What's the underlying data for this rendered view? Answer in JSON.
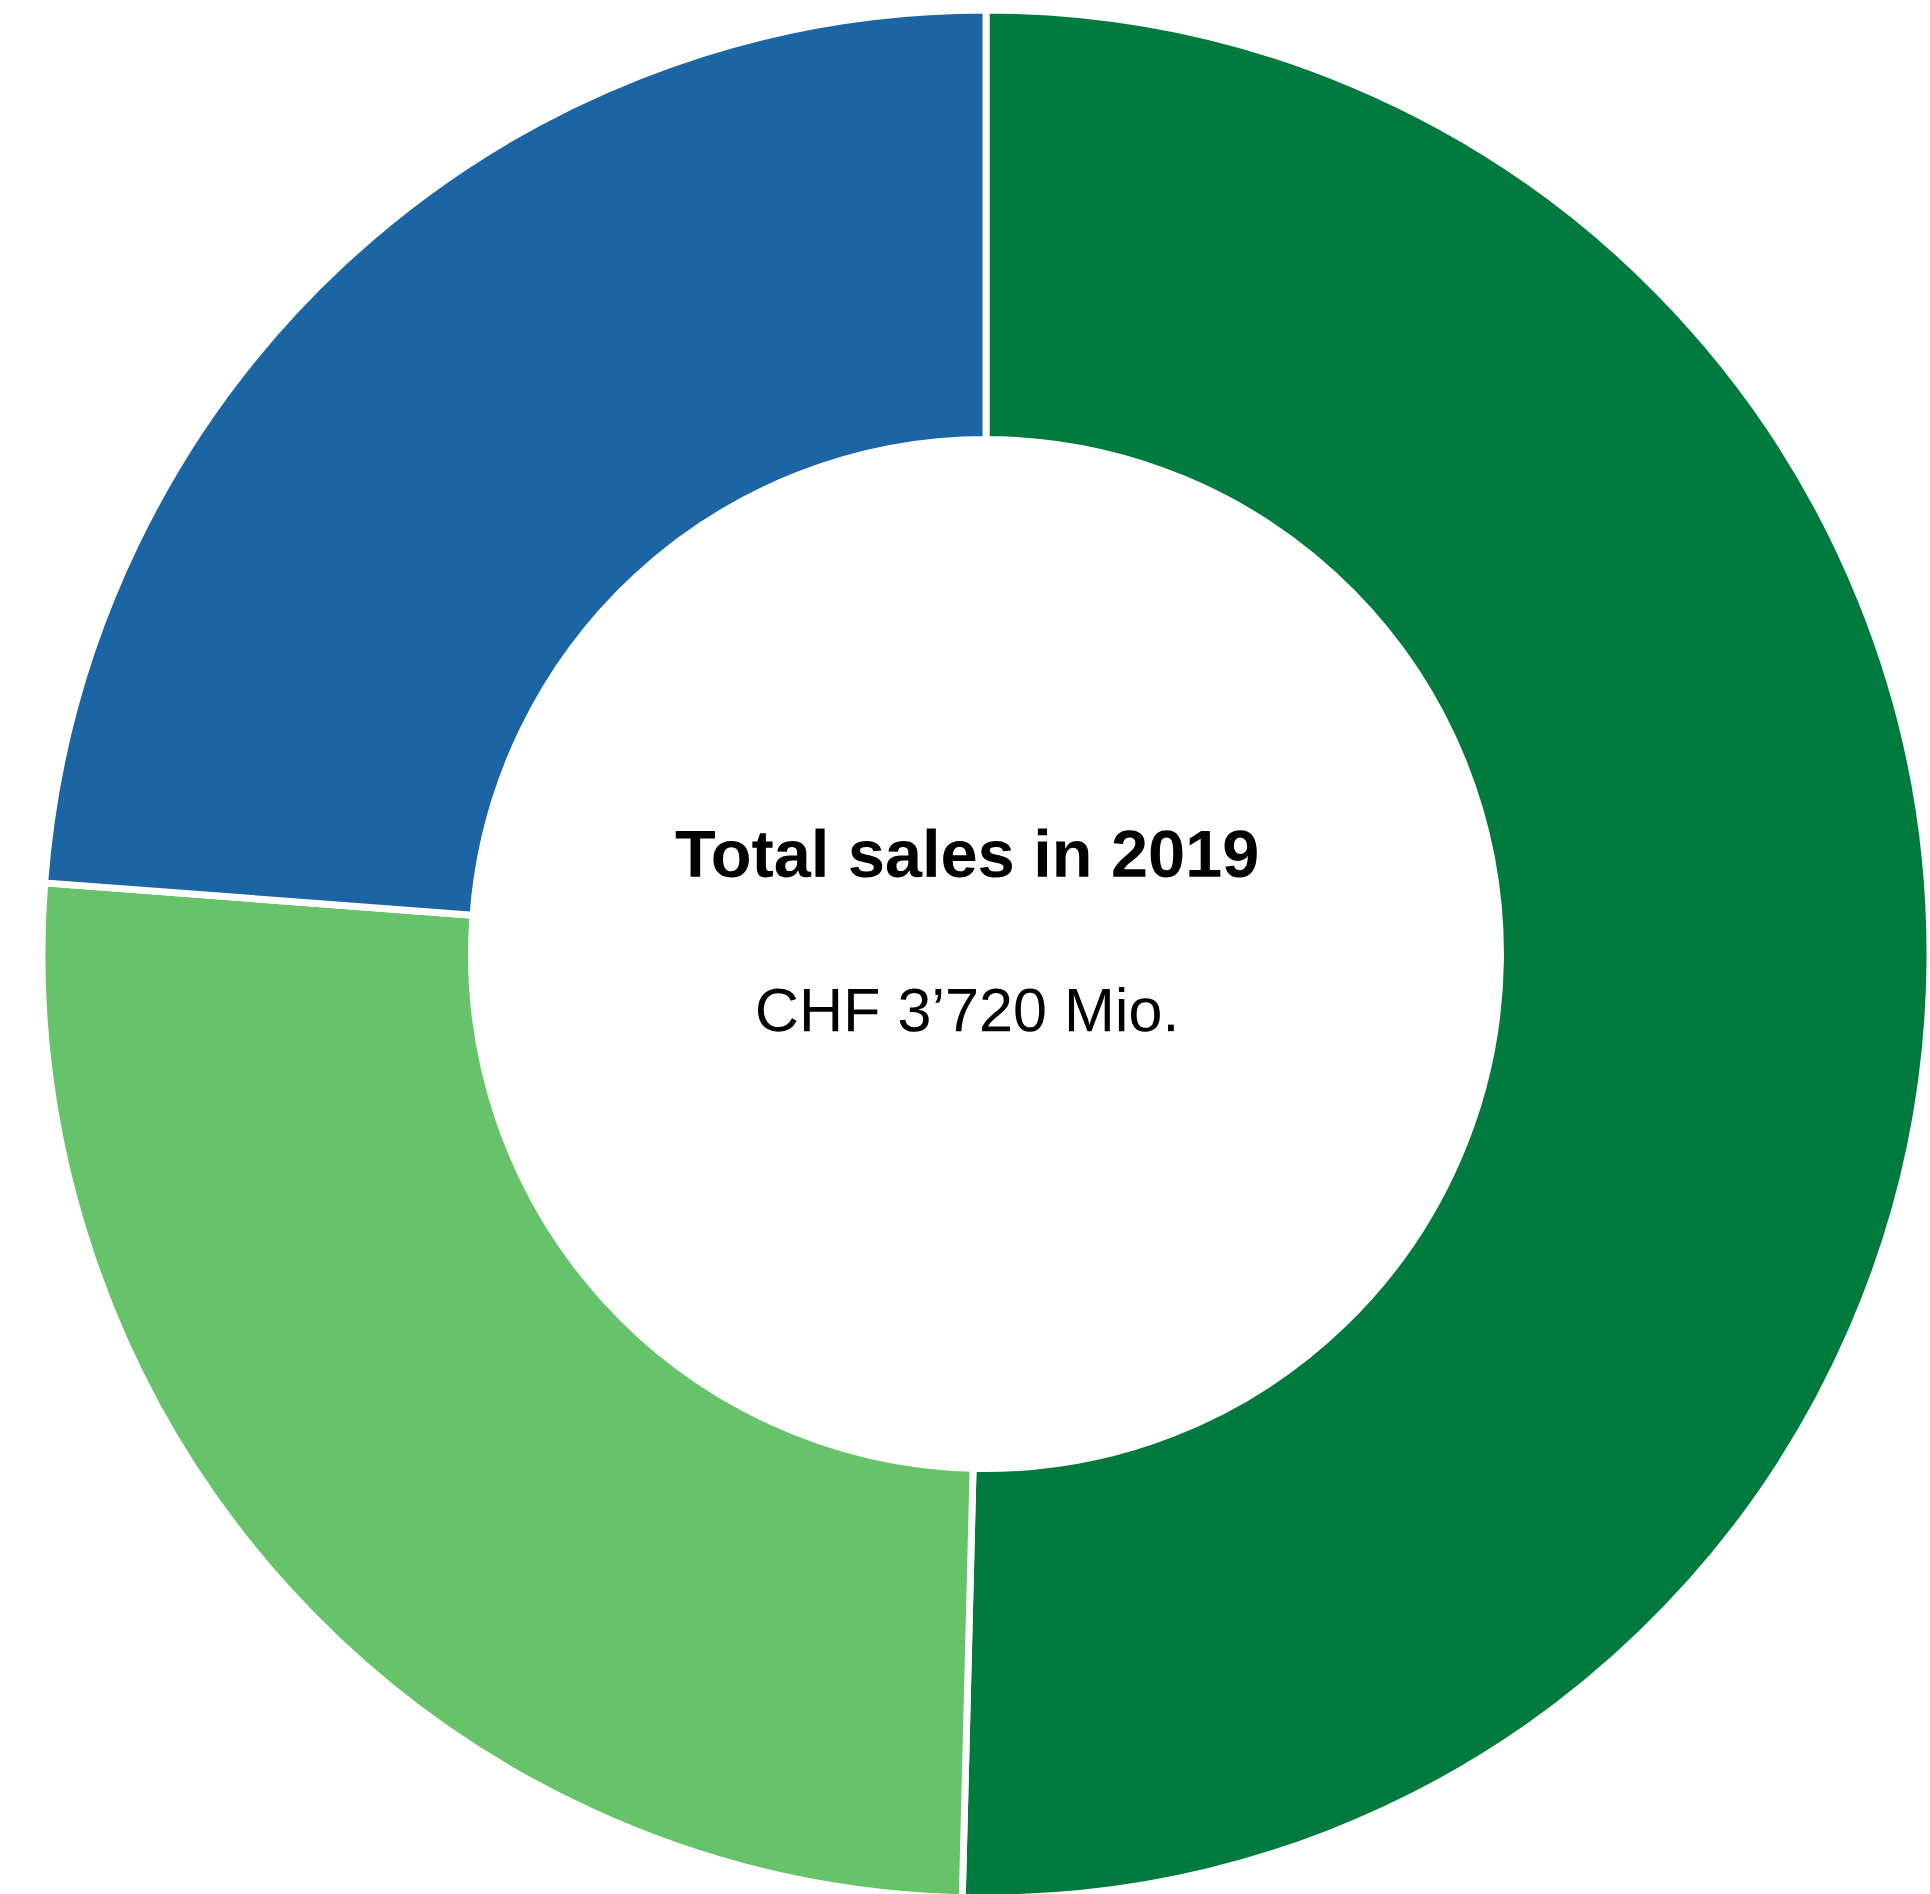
{
  "chart_data": {
    "type": "donut",
    "title": "Total sales in 2019",
    "subtitle": "CHF 3’720 Mio.",
    "categories": [
      null,
      null,
      null
    ],
    "values": [
      50.4,
      25.8,
      23.8
    ],
    "colors": [
      "#017a3e",
      "#67c36a",
      "#1b65a4"
    ]
  }
}
